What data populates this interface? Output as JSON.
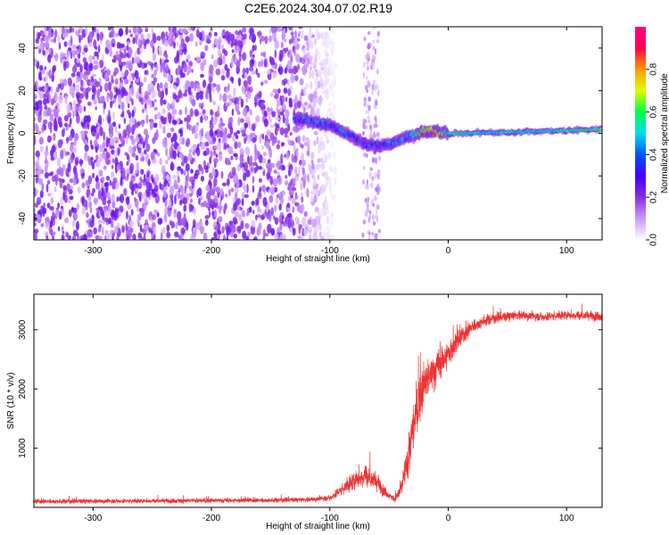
{
  "figure_title": "C2E6.2024.304.07.02.R19",
  "chart_data": [
    {
      "type": "heatmap",
      "title": "",
      "xlabel": "Height of straight line (km)",
      "ylabel": "Frequency (Hz)",
      "xlim": [
        -350,
        130
      ],
      "ylim": [
        -50,
        50
      ],
      "x_ticks": [
        -300,
        -200,
        -100,
        0,
        100
      ],
      "y_ticks": [
        -40,
        -20,
        0,
        20,
        40
      ],
      "colorbar": {
        "label": "Normalized spectral amplitude",
        "range": [
          0.0,
          1.0
        ],
        "ticks": [
          0.0,
          0.2,
          0.4,
          0.6,
          0.8
        ],
        "colormap": [
          "#ffffff",
          "#cc99ff",
          "#8a2be2",
          "#4400ff",
          "#0055ff",
          "#00ddee",
          "#00ff44",
          "#ddff00",
          "#ff9900",
          "#ff0044",
          "#ff0088"
        ]
      },
      "signal_track": {
        "x": [
          -130,
          -120,
          -110,
          -100,
          -90,
          -80,
          -70,
          -60,
          -50,
          -40,
          -30,
          -20,
          -10,
          0,
          20,
          50,
          80,
          110,
          130
        ],
        "frequency": [
          7,
          6,
          5,
          4,
          1,
          -2,
          -5,
          -6,
          -5,
          -3,
          -1,
          1,
          1,
          0,
          0,
          0.5,
          1,
          1.5,
          2
        ],
        "amplitude": [
          0.35,
          0.4,
          0.45,
          0.35,
          0.4,
          0.35,
          0.3,
          0.35,
          0.4,
          0.45,
          0.5,
          0.7,
          0.75,
          0.55,
          0.5,
          0.5,
          0.5,
          0.55,
          0.6
        ]
      },
      "noise_region": {
        "x_range": [
          -350,
          -115
        ],
        "amplitude": 0.2
      },
      "interference_band": {
        "x_range": [
          -72,
          -58
        ],
        "amplitude": 0.1
      }
    },
    {
      "type": "line",
      "title": "",
      "xlabel": "Height of straight line (km)",
      "ylabel": "SNR (10 * v/v)",
      "xlim": [
        -350,
        130
      ],
      "ylim": [
        0,
        3600
      ],
      "x_ticks": [
        -300,
        -200,
        -100,
        0,
        100
      ],
      "y_ticks": [
        1000,
        2000,
        3000
      ],
      "grid": false,
      "series": [
        {
          "color": "#ee3333",
          "x": [
            -350,
            -300,
            -250,
            -200,
            -150,
            -120,
            -100,
            -90,
            -80,
            -70,
            -60,
            -55,
            -50,
            -45,
            -40,
            -35,
            -30,
            -25,
            -20,
            -10,
            0,
            10,
            20,
            30,
            40,
            60,
            80,
            100,
            130
          ],
          "y": [
            100,
            105,
            110,
            115,
            120,
            130,
            160,
            300,
            450,
            550,
            420,
            300,
            200,
            140,
            300,
            700,
            1300,
            1800,
            2100,
            2350,
            2600,
            2850,
            3050,
            3150,
            3200,
            3250,
            3220,
            3250,
            3230
          ],
          "noise_amplitude": [
            60,
            60,
            60,
            60,
            60,
            60,
            80,
            150,
            250,
            300,
            220,
            150,
            80,
            60,
            300,
            500,
            600,
            600,
            550,
            450,
            350,
            250,
            180,
            150,
            130,
            120,
            120,
            120,
            120
          ]
        }
      ]
    }
  ]
}
